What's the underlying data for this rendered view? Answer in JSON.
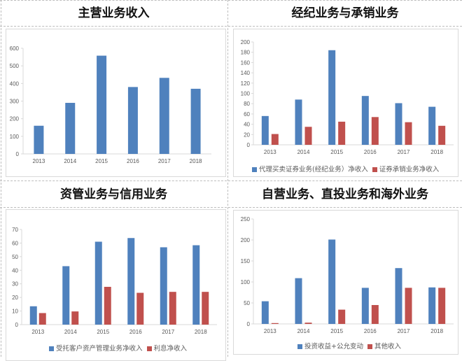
{
  "panels": [
    {
      "title": "主营业务收入"
    },
    {
      "title": "经纪业务与承销业务"
    },
    {
      "title": "资管业务与信用业务"
    },
    {
      "title": "自营业务、直投业务和海外业务"
    }
  ],
  "colors": {
    "blue": "#4f81bd",
    "red": "#c0504d",
    "axis_text": "#595959",
    "axis_line": "#d9d9d9"
  },
  "chart_data": [
    {
      "type": "bar",
      "title": "主营业务收入",
      "categories": [
        "2013",
        "2014",
        "2015",
        "2016",
        "2017",
        "2018"
      ],
      "series": [
        {
          "name": "",
          "color": "#4f81bd",
          "values": [
            160,
            290,
            558,
            380,
            432,
            370
          ]
        }
      ],
      "xlabel": "",
      "ylabel": "",
      "ylim": [
        0,
        600
      ],
      "yticks": [
        0,
        100,
        200,
        300,
        400,
        500,
        600
      ],
      "grid": false,
      "legend": null
    },
    {
      "type": "bar",
      "title": "经纪业务与承销业务",
      "categories": [
        "2013",
        "2014",
        "2015",
        "2016",
        "2017",
        "2018"
      ],
      "series": [
        {
          "name": "代理买卖证券业务(经纪业务）净收入",
          "color": "#4f81bd",
          "values": [
            56,
            88,
            184,
            95,
            81,
            74
          ]
        },
        {
          "name": "证券承销业务净收入",
          "color": "#c0504d",
          "values": [
            21,
            35,
            45,
            54,
            44,
            37
          ]
        }
      ],
      "xlabel": "",
      "ylabel": "",
      "ylim": [
        0,
        200
      ],
      "yticks": [
        0,
        20,
        40,
        60,
        80,
        100,
        120,
        140,
        160,
        180,
        200
      ],
      "grid": false,
      "legend": "bottom"
    },
    {
      "type": "bar",
      "title": "资管业务与信用业务",
      "categories": [
        "2013",
        "2014",
        "2015",
        "2016",
        "2017",
        "2018"
      ],
      "series": [
        {
          "name": "受托客户资产管理业务净收入",
          "color": "#4f81bd",
          "values": [
            13.5,
            43,
            61,
            63.7,
            56.9,
            58.4
          ]
        },
        {
          "name": "利息净收入",
          "color": "#c0504d",
          "values": [
            8.5,
            9.7,
            27.8,
            23.4,
            24.1,
            24.1
          ]
        }
      ],
      "xlabel": "",
      "ylabel": "",
      "ylim": [
        0,
        70
      ],
      "yticks": [
        0,
        10,
        20,
        30,
        40,
        50,
        60,
        70
      ],
      "grid": false,
      "legend": "bottom"
    },
    {
      "type": "bar",
      "title": "自营业务、直投业务和海外业务",
      "categories": [
        "2013",
        "2014",
        "2015",
        "2016",
        "2017",
        "2018"
      ],
      "series": [
        {
          "name": "投资收益+公允变动",
          "color": "#4f81bd",
          "values": [
            54,
            109,
            201,
            86,
            133,
            87
          ]
        },
        {
          "name": "其他收入",
          "color": "#c0504d",
          "values": [
            2,
            3,
            34,
            45,
            86,
            86
          ]
        }
      ],
      "xlabel": "",
      "ylabel": "",
      "ylim": [
        0,
        250
      ],
      "yticks": [
        0,
        50,
        100,
        150,
        200,
        250
      ],
      "grid": false,
      "legend": "bottom"
    }
  ]
}
